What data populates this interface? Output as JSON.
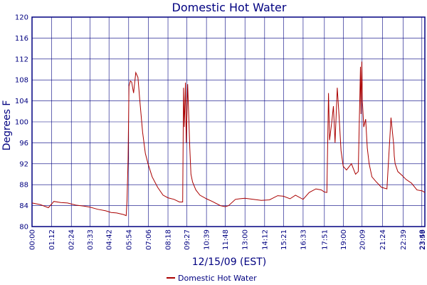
{
  "chart_data": {
    "type": "line",
    "title": "Domestic Hot Water",
    "xlabel": "12/15/09 (EST)",
    "ylabel": "Degrees F",
    "ylim": [
      80,
      120
    ],
    "y_ticks": [
      80,
      84,
      88,
      92,
      96,
      100,
      104,
      108,
      112,
      116,
      120
    ],
    "x_tick_labels": [
      "00:00",
      "01:12",
      "02:24",
      "03:33",
      "04:42",
      "05:54",
      "07:06",
      "08:18",
      "09:27",
      "10:39",
      "11:48",
      "13:00",
      "14:12",
      "15:21",
      "16:33",
      "17:51",
      "19:00",
      "20:09",
      "21:24",
      "22:39",
      "23:48",
      "23:59"
    ],
    "grid": true,
    "legend_position": "bottom-center",
    "colors": {
      "series": "#aa0000",
      "grid": "#000080",
      "text": "#000080"
    },
    "series": [
      {
        "name": "Domestic Hot Water",
        "x": [
          "00:00",
          "00:30",
          "01:00",
          "01:20",
          "01:45",
          "02:10",
          "02:40",
          "03:10",
          "03:33",
          "04:00",
          "04:30",
          "04:50",
          "05:10",
          "05:35",
          "05:45",
          "05:48",
          "05:52",
          "05:55",
          "06:00",
          "06:05",
          "06:12",
          "06:20",
          "06:28",
          "06:35",
          "06:45",
          "06:55",
          "07:05",
          "07:20",
          "07:40",
          "08:00",
          "08:18",
          "08:40",
          "09:00",
          "09:12",
          "09:15",
          "09:18",
          "09:22",
          "09:25",
          "09:30",
          "09:35",
          "09:38",
          "09:42",
          "09:48",
          "10:00",
          "10:15",
          "10:39",
          "11:00",
          "11:30",
          "11:48",
          "12:00",
          "12:25",
          "12:40",
          "13:00",
          "13:30",
          "14:00",
          "14:30",
          "15:00",
          "15:21",
          "15:45",
          "16:05",
          "16:33",
          "16:55",
          "17:20",
          "17:40",
          "17:51",
          "18:00",
          "18:06",
          "18:10",
          "18:18",
          "18:24",
          "18:30",
          "18:38",
          "18:45",
          "18:52",
          "19:00",
          "19:12",
          "19:30",
          "19:45",
          "19:55",
          "20:03",
          "20:05",
          "20:08",
          "20:10",
          "20:15",
          "20:22",
          "20:28",
          "20:35",
          "20:45",
          "21:00",
          "21:20",
          "21:40",
          "21:55",
          "22:05",
          "22:07",
          "22:10",
          "22:20",
          "22:35",
          "22:50",
          "23:10",
          "23:30",
          "23:50",
          "23:59"
        ],
        "values": [
          84.5,
          84.2,
          83.6,
          84.8,
          84.6,
          84.5,
          84.1,
          83.9,
          83.7,
          83.3,
          83.0,
          82.7,
          82.6,
          82.3,
          82.1,
          85.0,
          93.0,
          106.8,
          107.8,
          107.6,
          105.5,
          109.4,
          108.5,
          104.0,
          98.0,
          94.0,
          92.0,
          89.5,
          87.5,
          86.0,
          85.5,
          85.2,
          84.7,
          84.7,
          106.5,
          99.0,
          107.5,
          96.0,
          107.2,
          99.5,
          95.0,
          90.0,
          88.5,
          87.0,
          86.0,
          85.3,
          84.8,
          84.0,
          83.8,
          84.0,
          85.2,
          85.3,
          85.4,
          85.2,
          85.0,
          85.1,
          85.9,
          85.8,
          85.3,
          86.0,
          85.2,
          86.5,
          87.2,
          87.0,
          86.6,
          86.5,
          105.5,
          96.5,
          100.0,
          103.0,
          96.0,
          106.5,
          101.0,
          94.5,
          91.5,
          90.8,
          92.0,
          90.0,
          90.5,
          110.5,
          101.5,
          111.5,
          104.0,
          99.0,
          100.5,
          95.0,
          92.0,
          89.5,
          88.6,
          87.5,
          87.2,
          100.8,
          95.5,
          93.5,
          92.0,
          90.5,
          89.8,
          89.0,
          88.3,
          87.0,
          86.8,
          86.5
        ]
      }
    ]
  }
}
